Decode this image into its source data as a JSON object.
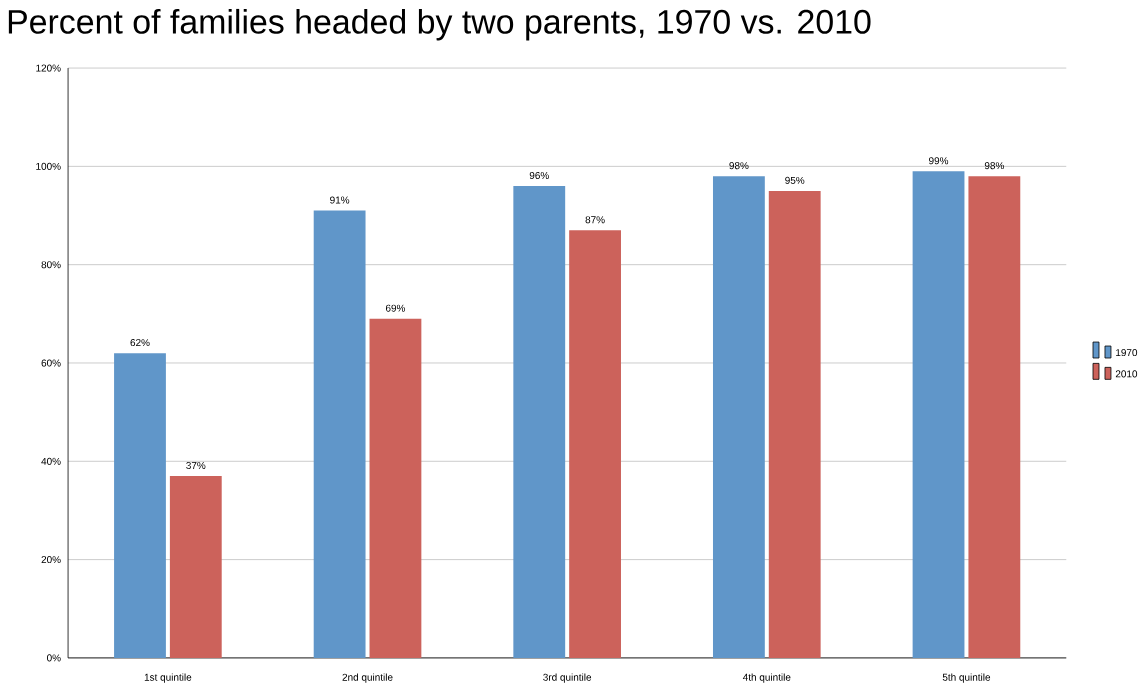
{
  "chart_data": {
    "type": "bar",
    "title": "Percent of families headed by two parents, 1970 vs. 2010",
    "categories": [
      "1st quintile",
      "2nd quintile",
      "3rd quintile",
      "4th quintile",
      "5th quintile"
    ],
    "series": [
      {
        "name": "1970",
        "color": "#6096c9",
        "values": [
          62,
          91,
          96,
          98,
          99
        ],
        "value_labels": [
          "62%",
          "91%",
          "96%",
          "98%",
          "99%"
        ]
      },
      {
        "name": "2010",
        "color": "#cc625b",
        "values": [
          37,
          69,
          87,
          95,
          98
        ],
        "value_labels": [
          "37%",
          "69%",
          "87%",
          "95%",
          "98%"
        ]
      }
    ],
    "ylim": [
      0,
      120
    ],
    "yticks": [
      {
        "value": 0,
        "label": "0%"
      },
      {
        "value": 20,
        "label": "20%"
      },
      {
        "value": 40,
        "label": "40%"
      },
      {
        "value": 60,
        "label": "60%"
      },
      {
        "value": 80,
        "label": "80%"
      },
      {
        "value": 100,
        "label": "100%"
      },
      {
        "value": 120,
        "label": "120%"
      }
    ],
    "grid": "y",
    "legend": "right"
  }
}
